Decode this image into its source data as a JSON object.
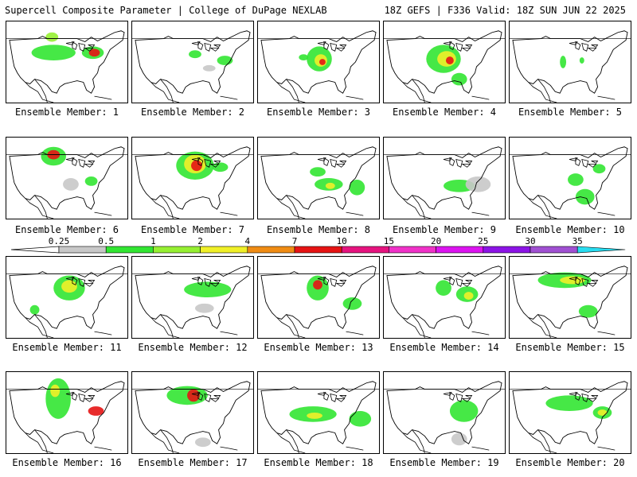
{
  "header": {
    "title": "Supercell Composite Parameter | College of DuPage NEXLAB",
    "run_info": "18Z GEFS | F336 Valid: 18Z SUN JUN 22 2025"
  },
  "colorbar": {
    "levels": [
      "0.25",
      "0.5",
      "1",
      "2",
      "4",
      "7",
      "10",
      "15",
      "20",
      "25",
      "30",
      "35"
    ],
    "colors": [
      "#c8c8c8",
      "#32e632",
      "#96f032",
      "#f0f028",
      "#f08c14",
      "#e61414",
      "#e6147f",
      "#f032c8",
      "#dc14f0",
      "#8c14e6",
      "#a050d2",
      "#28dcf0"
    ]
  },
  "members": [
    {
      "label": "Ensemble Member: 1"
    },
    {
      "label": "Ensemble Member: 2"
    },
    {
      "label": "Ensemble Member: 3"
    },
    {
      "label": "Ensemble Member: 4"
    },
    {
      "label": "Ensemble Member: 5"
    },
    {
      "label": "Ensemble Member: 6"
    },
    {
      "label": "Ensemble Member: 7"
    },
    {
      "label": "Ensemble Member: 8"
    },
    {
      "label": "Ensemble Member: 9"
    },
    {
      "label": "Ensemble Member: 10"
    },
    {
      "label": "Ensemble Member: 11"
    },
    {
      "label": "Ensemble Member: 12"
    },
    {
      "label": "Ensemble Member: 13"
    },
    {
      "label": "Ensemble Member: 14"
    },
    {
      "label": "Ensemble Member: 15"
    },
    {
      "label": "Ensemble Member: 16"
    },
    {
      "label": "Ensemble Member: 17"
    },
    {
      "label": "Ensemble Member: 18"
    },
    {
      "label": "Ensemble Member: 19"
    },
    {
      "label": "Ensemble Member: 20"
    }
  ]
}
